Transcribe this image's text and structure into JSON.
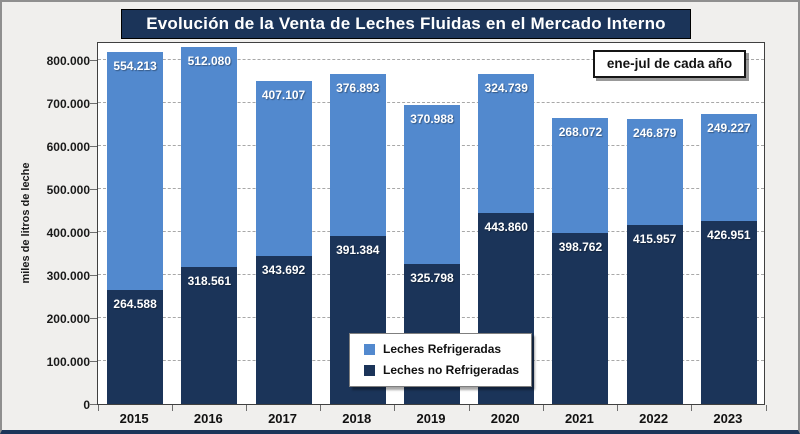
{
  "title": "Evolución de la Venta de Leches Fluidas en el Mercado Interno",
  "annotation": "ene-jul de cada año",
  "y_axis_title": "miles de litros de leche",
  "colors": {
    "refrigeradas_blue": "#5289ce",
    "no_refrigeradas_navy": "#1b3459",
    "title_band": "#1b3459",
    "plot_background": "#ffffff",
    "page_background": "#f0efed"
  },
  "legend": {
    "items": [
      {
        "label": "Leches Refrigeradas",
        "color": "#5289ce"
      },
      {
        "label": "Leches no Refrigeradas",
        "color": "#1b3459"
      }
    ]
  },
  "chart_data": {
    "type": "bar",
    "stacked": true,
    "title": "Evolución de la Venta de Leches Fluidas en el Mercado Interno",
    "subtitle_box": "ene-jul de cada año",
    "xlabel": "",
    "ylabel": "miles de litros de leche",
    "categories": [
      "2015",
      "2016",
      "2017",
      "2018",
      "2019",
      "2020",
      "2021",
      "2022",
      "2023"
    ],
    "series_bottom_to_top": [
      {
        "name": "Leches no Refrigeradas",
        "color": "#1b3459",
        "values": [
          264588,
          318561,
          343692,
          391384,
          325798,
          443860,
          398762,
          415957,
          426951
        ],
        "labels": [
          "264.588",
          "318.561",
          "343.692",
          "391.384",
          "325.798",
          "443.860",
          "398.762",
          "415.957",
          "426.951"
        ]
      },
      {
        "name": "Leches Refrigeradas",
        "color": "#5289ce",
        "values": [
          554213,
          512080,
          407107,
          376893,
          370988,
          324739,
          268072,
          246879,
          249227
        ],
        "labels": [
          "554.213",
          "512.080",
          "407.107",
          "376.893",
          "370.988",
          "324.739",
          "268.072",
          "246.879",
          "249.227"
        ]
      }
    ],
    "y_ticks": [
      {
        "value": 0,
        "label": "0"
      },
      {
        "value": 100000,
        "label": "100.000"
      },
      {
        "value": 200000,
        "label": "200.000"
      },
      {
        "value": 300000,
        "label": "300.000"
      },
      {
        "value": 400000,
        "label": "400.000"
      },
      {
        "value": 500000,
        "label": "500.000"
      },
      {
        "value": 600000,
        "label": "600.000"
      },
      {
        "value": 700000,
        "label": "700.000"
      },
      {
        "value": 800000,
        "label": "800.000"
      }
    ],
    "ylim": [
      0,
      845000
    ],
    "grid": "horizontal-dashed",
    "legend_position": "inside-bottom-center",
    "value_labels": "inside-top-of-each-segment"
  }
}
